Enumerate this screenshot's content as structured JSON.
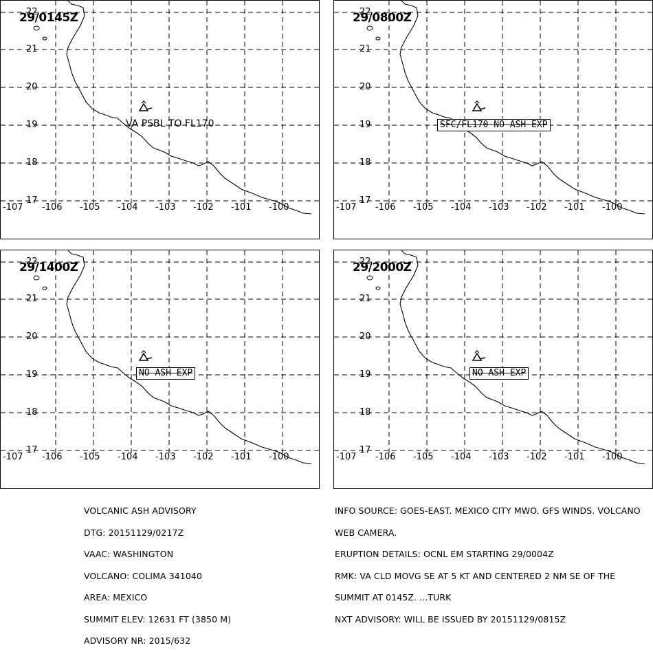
{
  "panels": [
    {
      "time": "29/0145Z",
      "label": "VA PSBL TO FL170",
      "boxed": false
    },
    {
      "time": "29/0800Z",
      "label": "SFC/FL170 NO ASH EXP",
      "boxed": true
    },
    {
      "time": "29/1400Z",
      "label": "NO ASH EXP",
      "boxed": true
    },
    {
      "time": "29/2000Z",
      "label": "NO ASH EXP",
      "boxed": true
    }
  ],
  "lat_labels": [
    "22",
    "21",
    "20",
    "19",
    "18",
    "17"
  ],
  "lon_labels": [
    "-107",
    "-106",
    "-105",
    "-104",
    "-103",
    "-102",
    "-101",
    "-100"
  ],
  "advisory_left": [
    "VOLCANIC ASH ADVISORY",
    "DTG: 20151129/0217Z",
    "VAAC: WASHINGTON",
    "VOLCANO: COLIMA 341040",
    "AREA: MEXICO",
    "SUMMIT ELEV: 12631 FT (3850 M)",
    "ADVISORY NR: 2015/632"
  ],
  "advisory_right": [
    "INFO SOURCE: GOES-EAST. MEXICO CITY MWO. GFS WINDS. VOLCANO",
    "WEB CAMERA.",
    "ERUPTION DETAILS: OCNL EM STARTING 29/0004Z",
    "RMK: VA CLD MOVG SE AT 5 KT AND CENTERED 2 NM SE OF THE",
    "SUMMIT AT 0145Z. ...TURK",
    "NXT ADVISORY: WILL BE ISSUED BY 20151129/0815Z"
  ],
  "volcano_symbol": "volcano-icon",
  "map_colors": {
    "line": "#000000",
    "background": "#ffffff"
  }
}
